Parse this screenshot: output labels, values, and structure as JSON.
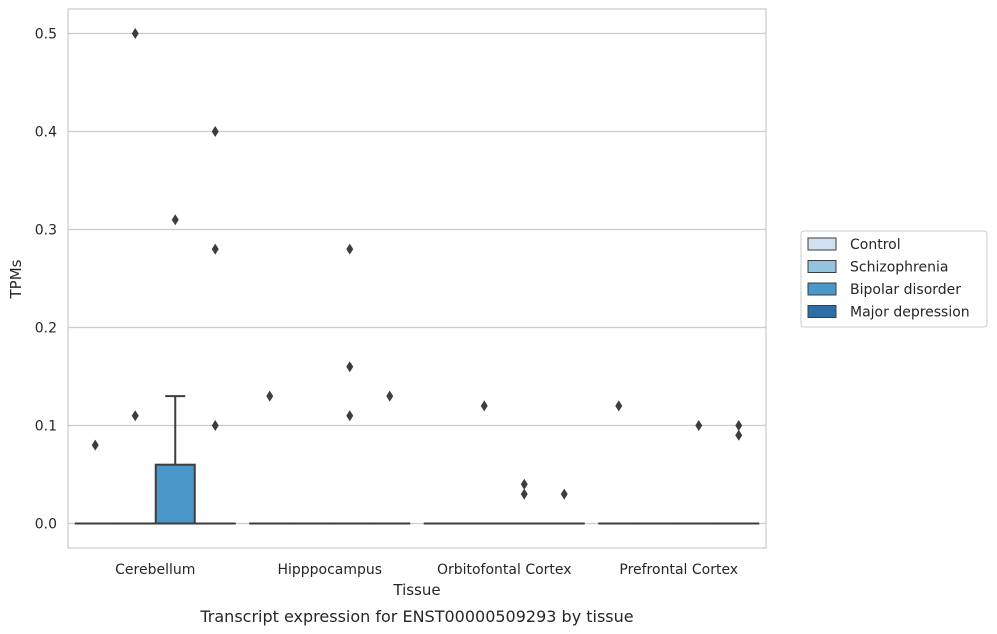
{
  "chart_data": {
    "type": "box",
    "title": "",
    "caption": "Transcript expression for ENST00000509293 by tissue",
    "xlabel": "Tissue",
    "ylabel": "TPMs",
    "ylim": [
      -0.025,
      0.525
    ],
    "yticks": [
      0.0,
      0.1,
      0.2,
      0.3,
      0.4,
      0.5
    ],
    "ytick_labels": [
      "0.0",
      "0.1",
      "0.2",
      "0.3",
      "0.4",
      "0.5"
    ],
    "categories": [
      "Cerebellum",
      "Hipppocampus",
      "Orbitofontal Cortex",
      "Prefrontal Cortex"
    ],
    "grid": "horizontal",
    "legend_position": "right",
    "series": [
      {
        "name": "Control",
        "color": "#d0e1f2",
        "boxes": [
          {
            "category": "Cerebellum",
            "q1": 0,
            "median": 0,
            "q3": 0,
            "whisker_low": 0,
            "whisker_high": 0,
            "outliers": [
              0.08
            ]
          },
          {
            "category": "Hipppocampus",
            "q1": 0,
            "median": 0,
            "q3": 0,
            "whisker_low": 0,
            "whisker_high": 0,
            "outliers": [
              0.13
            ]
          },
          {
            "category": "Orbitofontal Cortex",
            "q1": 0,
            "median": 0,
            "q3": 0,
            "whisker_low": 0,
            "whisker_high": 0,
            "outliers": []
          },
          {
            "category": "Prefrontal Cortex",
            "q1": 0,
            "median": 0,
            "q3": 0,
            "whisker_low": 0,
            "whisker_high": 0,
            "outliers": [
              0.12
            ]
          }
        ]
      },
      {
        "name": "Schizophrenia",
        "color": "#94c4df",
        "boxes": [
          {
            "category": "Cerebellum",
            "q1": 0,
            "median": 0,
            "q3": 0,
            "whisker_low": 0,
            "whisker_high": 0,
            "outliers": [
              0.5,
              0.11
            ]
          },
          {
            "category": "Hipppocampus",
            "q1": 0,
            "median": 0,
            "q3": 0,
            "whisker_low": 0,
            "whisker_high": 0,
            "outliers": []
          },
          {
            "category": "Orbitofontal Cortex",
            "q1": 0,
            "median": 0,
            "q3": 0,
            "whisker_low": 0,
            "whisker_high": 0,
            "outliers": [
              0.12
            ]
          },
          {
            "category": "Prefrontal Cortex",
            "q1": 0,
            "median": 0,
            "q3": 0,
            "whisker_low": 0,
            "whisker_high": 0,
            "outliers": []
          }
        ]
      },
      {
        "name": "Bipolar disorder",
        "color": "#4a98c9",
        "boxes": [
          {
            "category": "Cerebellum",
            "q1": 0,
            "median": 0,
            "q3": 0.06,
            "whisker_low": 0,
            "whisker_high": 0.13,
            "outliers": [
              0.31
            ]
          },
          {
            "category": "Hipppocampus",
            "q1": 0,
            "median": 0,
            "q3": 0,
            "whisker_low": 0,
            "whisker_high": 0,
            "outliers": [
              0.28,
              0.16,
              0.11
            ]
          },
          {
            "category": "Orbitofontal Cortex",
            "q1": 0,
            "median": 0,
            "q3": 0,
            "whisker_low": 0,
            "whisker_high": 0,
            "outliers": [
              0.04,
              0.03
            ]
          },
          {
            "category": "Prefrontal Cortex",
            "q1": 0,
            "median": 0,
            "q3": 0,
            "whisker_low": 0,
            "whisker_high": 0,
            "outliers": [
              0.1
            ]
          }
        ]
      },
      {
        "name": "Major depression",
        "color": "#2e6ea8",
        "boxes": [
          {
            "category": "Cerebellum",
            "q1": 0,
            "median": 0,
            "q3": 0,
            "whisker_low": 0,
            "whisker_high": 0,
            "outliers": [
              0.4,
              0.28,
              0.1
            ]
          },
          {
            "category": "Hipppocampus",
            "q1": 0,
            "median": 0,
            "q3": 0,
            "whisker_low": 0,
            "whisker_high": 0,
            "outliers": [
              0.13
            ]
          },
          {
            "category": "Orbitofontal Cortex",
            "q1": 0,
            "median": 0,
            "q3": 0,
            "whisker_low": 0,
            "whisker_high": 0,
            "outliers": [
              0.03
            ]
          },
          {
            "category": "Prefrontal Cortex",
            "q1": 0,
            "median": 0,
            "q3": 0,
            "whisker_low": 0,
            "whisker_high": 0,
            "outliers": [
              0.1,
              0.09
            ]
          }
        ]
      }
    ]
  }
}
